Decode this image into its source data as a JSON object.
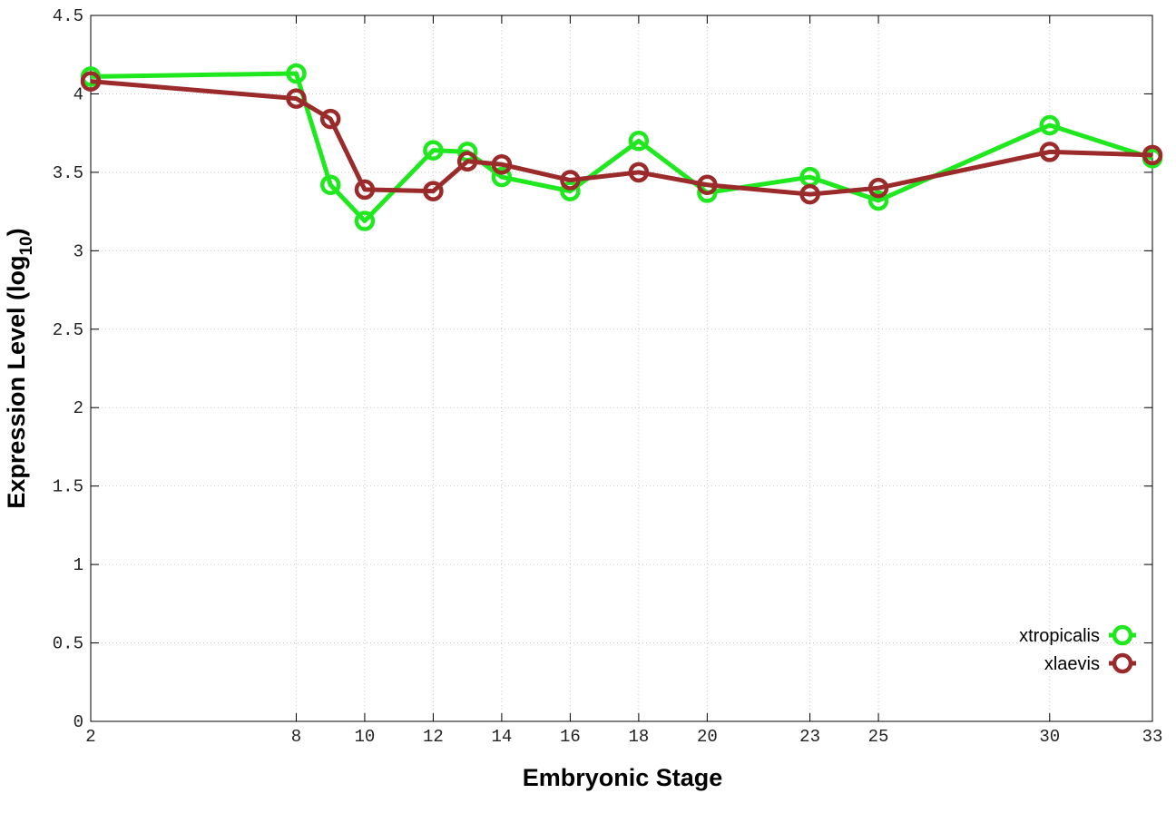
{
  "chart_data": {
    "type": "line",
    "x_label": "Embryonic Stage",
    "y_label": {
      "text": "Expression Level (log",
      "subscript": "10",
      "suffix": ")"
    },
    "x": [
      2,
      8,
      9,
      10,
      12,
      13,
      14,
      16,
      18,
      20,
      23,
      25,
      30,
      33
    ],
    "series": [
      {
        "name": "xtropicalis",
        "color": "#1fe81f",
        "values": [
          4.11,
          4.13,
          3.42,
          3.19,
          3.64,
          3.63,
          3.47,
          3.38,
          3.7,
          3.37,
          3.47,
          3.32,
          3.8,
          3.59
        ]
      },
      {
        "name": "xlaevis",
        "color": "#9b2a2a",
        "values": [
          4.08,
          3.97,
          3.84,
          3.39,
          3.38,
          3.57,
          3.55,
          3.45,
          3.5,
          3.42,
          3.36,
          3.4,
          3.63,
          3.61
        ]
      }
    ],
    "xlim": [
      2,
      33
    ],
    "xticks": [
      2,
      8,
      10,
      12,
      14,
      16,
      18,
      20,
      23,
      25,
      30,
      33
    ],
    "ylim": [
      0,
      4.5
    ],
    "yticks": [
      0,
      0.5,
      1,
      1.5,
      2,
      2.5,
      3,
      3.5,
      4,
      4.5
    ],
    "grid": true,
    "legend": "lower right"
  }
}
